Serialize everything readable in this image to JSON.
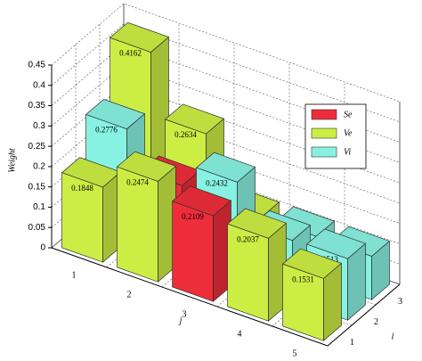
{
  "chart_data": {
    "type": "bar3d",
    "z_label": "Weight",
    "x_label": "j",
    "depth_label": "i",
    "x_categories": [
      "1",
      "2",
      "3",
      "4",
      "5"
    ],
    "depth_categories": [
      "1",
      "2",
      "3"
    ],
    "zlim": [
      0,
      0.45
    ],
    "zticks": [
      0,
      0.05,
      0.1,
      0.15,
      0.2,
      0.25,
      0.3,
      0.35,
      0.4,
      0.45
    ],
    "grid": true,
    "series": [
      {
        "name": "Se",
        "color": "#ee2d3a",
        "values": [
          [
            null,
            null,
            0.2109,
            null,
            null
          ],
          [
            null,
            0.1861,
            null,
            null,
            null
          ],
          [
            null,
            null,
            null,
            null,
            null
          ]
        ]
      },
      {
        "name": "Ve",
        "color": "#ccee44",
        "values": [
          [
            0.1848,
            0.2474,
            null,
            0.2037,
            0.1531
          ],
          [
            null,
            null,
            null,
            null,
            null
          ],
          [
            0.4162,
            0.2634,
            0.1061,
            null,
            null
          ]
        ]
      },
      {
        "name": "Vi",
        "color": "#88f2e2",
        "values": [
          [
            null,
            null,
            null,
            null,
            null
          ],
          [
            0.2776,
            null,
            0.2432,
            0.1481,
            0.1513
          ],
          [
            null,
            null,
            null,
            0.1075,
            0.1068
          ]
        ]
      }
    ]
  }
}
